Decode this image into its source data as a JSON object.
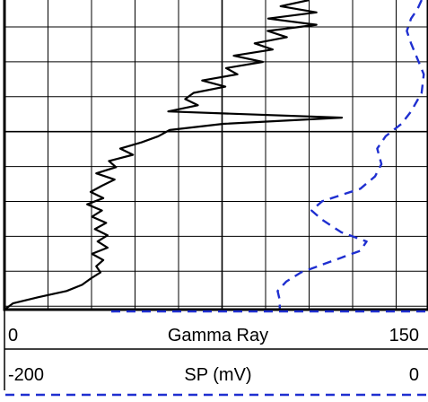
{
  "chart_data": {
    "type": "line",
    "grid": true,
    "tracks": [
      {
        "name": "Gamma Ray",
        "xlim": [
          0,
          150
        ],
        "tick_min_label": "0",
        "tick_max_label": "150",
        "color": "#000000",
        "line_style": "solid",
        "points": [
          [
            108.0,
            0
          ],
          [
            97.8,
            2
          ],
          [
            110.5,
            4
          ],
          [
            93.4,
            6
          ],
          [
            110.5,
            8
          ],
          [
            93.2,
            10
          ],
          [
            100.0,
            12
          ],
          [
            88.6,
            14
          ],
          [
            95.0,
            16
          ],
          [
            81.2,
            18
          ],
          [
            91.5,
            20
          ],
          [
            78.5,
            22
          ],
          [
            82.5,
            24
          ],
          [
            70.0,
            26
          ],
          [
            78.2,
            28
          ],
          [
            67.0,
            30
          ],
          [
            64.0,
            32
          ],
          [
            68.5,
            34
          ],
          [
            58.0,
            36
          ],
          [
            119.5,
            38
          ],
          [
            77.5,
            40
          ],
          [
            58.5,
            42
          ],
          [
            54.5,
            44
          ],
          [
            48.5,
            46
          ],
          [
            41.0,
            48
          ],
          [
            45.5,
            50
          ],
          [
            37.0,
            52
          ],
          [
            39.5,
            54
          ],
          [
            32.5,
            56
          ],
          [
            39.0,
            58
          ],
          [
            34.5,
            60
          ],
          [
            30.5,
            62
          ],
          [
            35.0,
            64
          ],
          [
            29.3,
            66
          ],
          [
            34.5,
            68
          ],
          [
            31.0,
            70
          ],
          [
            36.0,
            72
          ],
          [
            32.0,
            74
          ],
          [
            36.5,
            76
          ],
          [
            33.0,
            78
          ],
          [
            36.5,
            80
          ],
          [
            31.0,
            82
          ],
          [
            35.0,
            84
          ],
          [
            32.5,
            86
          ],
          [
            34.0,
            88
          ],
          [
            30.5,
            90
          ],
          [
            27.5,
            92
          ],
          [
            22.0,
            94
          ],
          [
            12.0,
            96
          ],
          [
            3.0,
            98
          ],
          [
            0.0,
            100
          ]
        ]
      },
      {
        "name": "SP (mV)",
        "xlim": [
          -200,
          0
        ],
        "tick_min_label": "-200",
        "tick_max_label": "0",
        "color": "#1f2fd0",
        "line_style": "dashed",
        "points": [
          [
            -3.0,
            0
          ],
          [
            -5.0,
            3
          ],
          [
            -8.0,
            6
          ],
          [
            -10.0,
            10
          ],
          [
            -8.0,
            14
          ],
          [
            -5.0,
            19
          ],
          [
            -2.0,
            24
          ],
          [
            -3.0,
            30
          ],
          [
            -8.0,
            36
          ],
          [
            -12.5,
            40
          ],
          [
            -20.0,
            44
          ],
          [
            -24.0,
            48
          ],
          [
            -22.0,
            53
          ],
          [
            -25.0,
            57
          ],
          [
            -32.0,
            61
          ],
          [
            -50.0,
            65
          ],
          [
            -55.0,
            68
          ],
          [
            -50.0,
            71
          ],
          [
            -41.0,
            75
          ],
          [
            -29.0,
            78
          ],
          [
            -32.0,
            81
          ],
          [
            -44.0,
            84
          ],
          [
            -60.0,
            88
          ],
          [
            -67.0,
            91
          ],
          [
            -71.0,
            94
          ],
          [
            -70.0,
            97
          ],
          [
            -70.0,
            100
          ]
        ]
      }
    ]
  }
}
